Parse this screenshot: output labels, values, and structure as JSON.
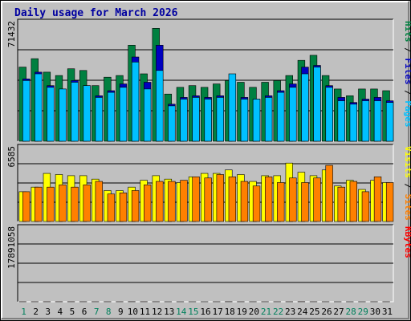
{
  "chart_data": {
    "type": "bar",
    "title": "Daily usage for March 2026",
    "categories": [
      "1",
      "2",
      "3",
      "4",
      "5",
      "6",
      "7",
      "8",
      "9",
      "10",
      "11",
      "12",
      "13",
      "14",
      "15",
      "16",
      "17",
      "18",
      "19",
      "20",
      "21",
      "22",
      "23",
      "24",
      "25",
      "26",
      "27",
      "28",
      "29",
      "30",
      "31"
    ],
    "weekend_days": [
      "1",
      "7",
      "8",
      "14",
      "15",
      "21",
      "22",
      "28",
      "29"
    ],
    "panels": {
      "top": {
        "max_label": "71432",
        "ylim": [
          0,
          71432
        ],
        "right_labels": [
          "Pages",
          "Files",
          "Hits"
        ],
        "series": [
          {
            "name": "Hits",
            "color": "#008040",
            "values": [
              44000,
              49000,
              41000,
              39000,
              43000,
              42000,
              33000,
              38000,
              39000,
              57000,
              40000,
              67000,
              28000,
              32000,
              33000,
              32000,
              34000,
              36000,
              35000,
              32000,
              35000,
              36000,
              39000,
              48000,
              51000,
              39000,
              31000,
              27000,
              31000,
              31000,
              30000
            ]
          },
          {
            "name": "Files",
            "color": "#0000c0",
            "values": [
              37000,
              41000,
              33000,
              31000,
              36000,
              33000,
              27000,
              30000,
              34000,
              50000,
              35000,
              57000,
              22000,
              26000,
              27000,
              26000,
              27000,
              34000,
              26000,
              25000,
              27000,
              30000,
              34000,
              44000,
              45000,
              33000,
              26000,
              23000,
              25000,
              26000,
              24000
            ]
          },
          {
            "name": "Pages",
            "color": "#00c0ff",
            "values": [
              36000,
              40000,
              32000,
              31000,
              35000,
              33000,
              26000,
              29000,
              32000,
              47000,
              31000,
              42000,
              21000,
              25000,
              26000,
              25000,
              26000,
              40000,
              25000,
              25000,
              26000,
              29000,
              32000,
              40000,
              44000,
              32000,
              24000,
              22000,
              24000,
              24000,
              23000
            ]
          }
        ]
      },
      "middle": {
        "max_label": "6585",
        "ylim": [
          0,
          6585
        ],
        "right_labels": [
          "Sites",
          "Visits"
        ],
        "series": [
          {
            "name": "Visits",
            "color": "#ffff00",
            "values": [
              2600,
              3000,
              4200,
              4100,
              4000,
              4000,
              3700,
              2700,
              2700,
              3000,
              3600,
              4000,
              3700,
              3400,
              3900,
              4200,
              4200,
              4500,
              4100,
              3500,
              4000,
              4000,
              5100,
              4300,
              4000,
              4500,
              3100,
              3600,
              2800,
              3600,
              3400
            ]
          },
          {
            "name": "Sites",
            "color": "#ff8000",
            "values": [
              2600,
              3000,
              3000,
              3200,
              3000,
              3200,
              3500,
              2400,
              2500,
              2700,
              3200,
              3500,
              3500,
              3600,
              3900,
              3800,
              4100,
              3900,
              3500,
              3100,
              3900,
              3400,
              3800,
              3400,
              3800,
              4900,
              3000,
              3500,
              2600,
              3900,
              3400
            ]
          }
        ]
      },
      "bottom": {
        "max_label": "17891058",
        "ylim": [
          0,
          17891058
        ],
        "right_labels": [
          "KBytes"
        ],
        "series": [
          {
            "name": "KBytes",
            "color": "#ff0000",
            "values": [
              8800,
              5900,
              9900,
              9900,
              9600,
              7100,
              6200,
              4900,
              5500,
              15200,
              8800,
              7100,
              1900,
              1700,
              1700,
              2700,
              2900,
              15200,
              5300,
              3200,
              3200,
              4500,
              5500,
              17800,
              4900,
              3400,
              2500,
              1800,
              2400,
              3000,
              4500
            ]
          }
        ]
      }
    }
  }
}
